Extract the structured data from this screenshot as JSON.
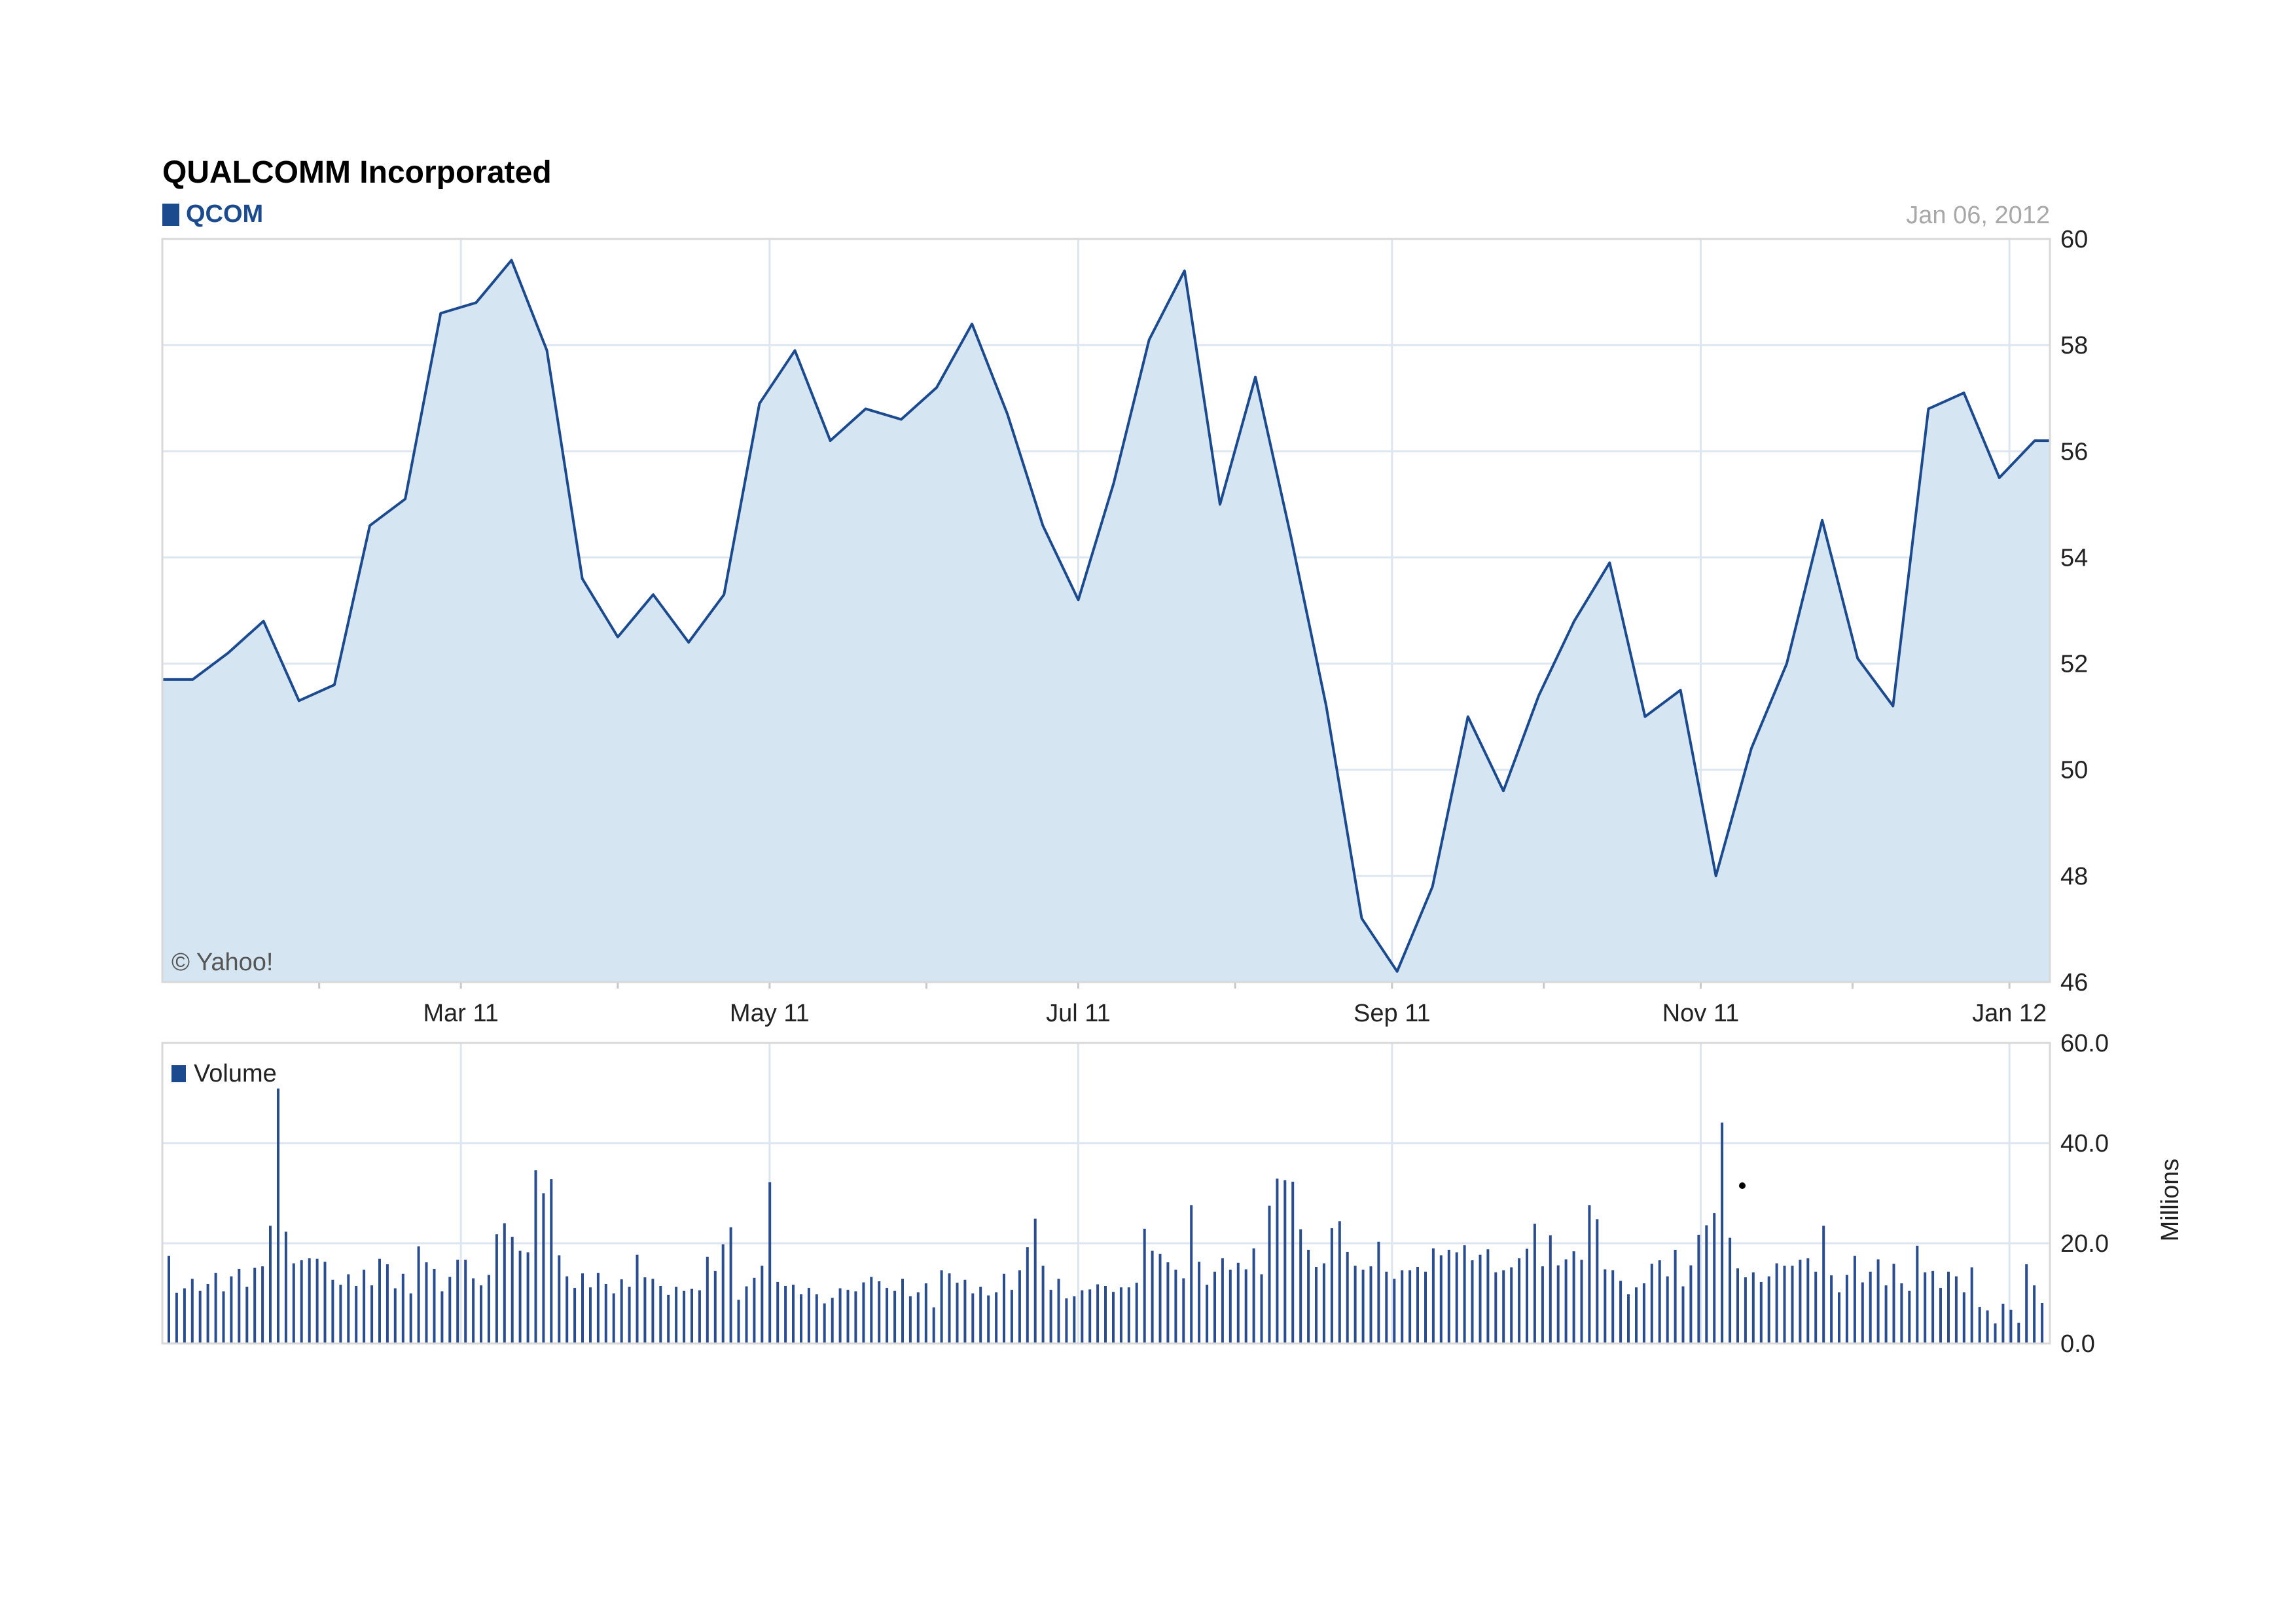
{
  "header": {
    "title": "QUALCOMM Incorporated",
    "symbol": "QCOM",
    "date": "Jan 06, 2012",
    "copyright": "© Yahoo!"
  },
  "colors": {
    "line": "#1c4a8f",
    "area_fill": "#d5e6f2",
    "grid": "#dde6ef",
    "volume_bar": "#2a4d8f"
  },
  "chart_data": [
    {
      "type": "area",
      "title": "QUALCOMM Incorporated",
      "series": [
        {
          "name": "QCOM",
          "x": [
            "2011-01-07",
            "2011-01-14",
            "2011-01-21",
            "2011-01-28",
            "2011-02-04",
            "2011-02-11",
            "2011-02-18",
            "2011-02-25",
            "2011-03-04",
            "2011-03-11",
            "2011-03-18",
            "2011-03-25",
            "2011-04-01",
            "2011-04-08",
            "2011-04-15",
            "2011-04-22",
            "2011-04-29",
            "2011-05-06",
            "2011-05-13",
            "2011-05-20",
            "2011-05-27",
            "2011-06-03",
            "2011-06-10",
            "2011-06-17",
            "2011-06-24",
            "2011-07-01",
            "2011-07-08",
            "2011-07-15",
            "2011-07-22",
            "2011-07-29",
            "2011-08-05",
            "2011-08-12",
            "2011-08-19",
            "2011-08-26",
            "2011-09-02",
            "2011-09-09",
            "2011-09-16",
            "2011-09-23",
            "2011-09-30",
            "2011-10-07",
            "2011-10-14",
            "2011-10-21",
            "2011-10-28",
            "2011-11-04",
            "2011-11-11",
            "2011-11-18",
            "2011-11-25",
            "2011-12-02",
            "2011-12-09",
            "2011-12-16",
            "2011-12-23",
            "2011-12-30",
            "2012-01-06"
          ],
          "values": [
            51.7,
            52.2,
            52.8,
            51.3,
            51.6,
            54.6,
            55.1,
            58.6,
            58.8,
            59.6,
            57.9,
            53.6,
            52.5,
            53.3,
            52.4,
            53.3,
            56.9,
            57.9,
            56.2,
            56.8,
            56.6,
            57.2,
            58.4,
            56.7,
            54.6,
            53.2,
            55.4,
            58.1,
            59.4,
            55.0,
            57.4,
            54.4,
            51.2,
            47.2,
            46.2,
            47.8,
            51.0,
            49.6,
            51.4,
            52.8,
            53.9,
            51.0,
            51.5,
            48.0,
            50.4,
            52.0,
            54.7,
            52.1,
            51.2,
            56.8,
            57.1,
            55.5,
            56.2
          ]
        }
      ],
      "x_tick_labels": [
        "Mar 11",
        "May 11",
        "Jul 11",
        "Sep 11",
        "Nov 11",
        "Jan 12"
      ],
      "y_ticks": [
        46,
        48,
        50,
        52,
        54,
        56,
        58,
        60
      ],
      "ylim": [
        46,
        60
      ],
      "grid": true,
      "y_axis_side": "right"
    },
    {
      "type": "bar",
      "series": [
        {
          "name": "Volume",
          "values": [
            17.5,
            10.1,
            11.0,
            12.9,
            10.5,
            11.9,
            14.1,
            10.4,
            13.4,
            14.9,
            11.3,
            15.1,
            15.4,
            23.5,
            50.9,
            22.3,
            16.0,
            16.6,
            17.0,
            16.9,
            16.3,
            12.7,
            11.7,
            13.8,
            11.5,
            14.7,
            11.6,
            16.9,
            15.8,
            11.0,
            13.9,
            10.0,
            19.4,
            16.2,
            14.9,
            10.4,
            13.3,
            16.7,
            16.7,
            13.0,
            11.6,
            13.7,
            21.8,
            24.0,
            21.3,
            18.5,
            18.2,
            34.6,
            30.0,
            32.8,
            17.6,
            13.4,
            11.1,
            14.0,
            11.2,
            14.1,
            11.9,
            10.0,
            12.8,
            11.3,
            17.7,
            13.2,
            12.9,
            11.5,
            9.7,
            11.3,
            10.5,
            10.9,
            10.6,
            17.3,
            14.5,
            19.8,
            23.2,
            8.7,
            11.4,
            13.1,
            15.5,
            32.2,
            12.3,
            11.5,
            11.7,
            9.8,
            11.1,
            9.8,
            8.0,
            9.1,
            11.0,
            10.7,
            10.4,
            12.2,
            13.3,
            12.4,
            11.1,
            10.5,
            12.9,
            9.4,
            10.2,
            12.0,
            7.2,
            14.6,
            14.0,
            12.1,
            12.7,
            10.0,
            11.3,
            9.6,
            10.2,
            13.9,
            10.7,
            14.6,
            19.2,
            24.9,
            15.5,
            10.7,
            12.9,
            9.0,
            9.4,
            10.6,
            10.8,
            11.8,
            11.5,
            10.3,
            11.2,
            11.2,
            12.1,
            22.9,
            18.5,
            17.9,
            16.2,
            14.7,
            13.0,
            27.6,
            16.3,
            11.7,
            14.3,
            17.0,
            14.7,
            16.1,
            14.8,
            19.0,
            13.8,
            27.5,
            32.9,
            32.6,
            32.3,
            22.8,
            18.7,
            15.3,
            16.0,
            23.0,
            24.4,
            18.3,
            15.5,
            14.7,
            15.4,
            20.3,
            14.3,
            12.9,
            14.6,
            14.6,
            15.3,
            14.3,
            19.0,
            17.6,
            18.7,
            18.2,
            19.6,
            16.6,
            17.7,
            18.8,
            14.2,
            14.6,
            15.2,
            17.0,
            18.9,
            23.9,
            15.4,
            21.6,
            15.6,
            16.8,
            18.4,
            16.7,
            27.6,
            24.8,
            14.8,
            14.6,
            12.5,
            9.8,
            11.2,
            12.0,
            15.9,
            16.6,
            13.4,
            18.7,
            11.4,
            15.6,
            21.7,
            23.6,
            26.0,
            44.1,
            21.1,
            15.0,
            13.2,
            14.2,
            12.3,
            13.4,
            16.0,
            15.5,
            15.5,
            16.7,
            17.0,
            14.3,
            23.5,
            13.6,
            10.2,
            13.7,
            17.5,
            12.2,
            14.3,
            16.8,
            11.6,
            15.9,
            12.0,
            10.5,
            19.5,
            14.2,
            14.5,
            11.1,
            14.3,
            13.4,
            10.2,
            15.2,
            7.3,
            6.6,
            4.0,
            7.9,
            6.7,
            4.1,
            15.8,
            11.6,
            8.1
          ]
        }
      ],
      "y_ticks": [
        0,
        20,
        40,
        60
      ],
      "y_tick_labels": [
        "0.0",
        "20.0",
        "40.0",
        "60.0"
      ],
      "ylim": [
        0,
        60
      ],
      "ylabel": "Millions",
      "grid": true,
      "y_axis_side": "right"
    }
  ]
}
